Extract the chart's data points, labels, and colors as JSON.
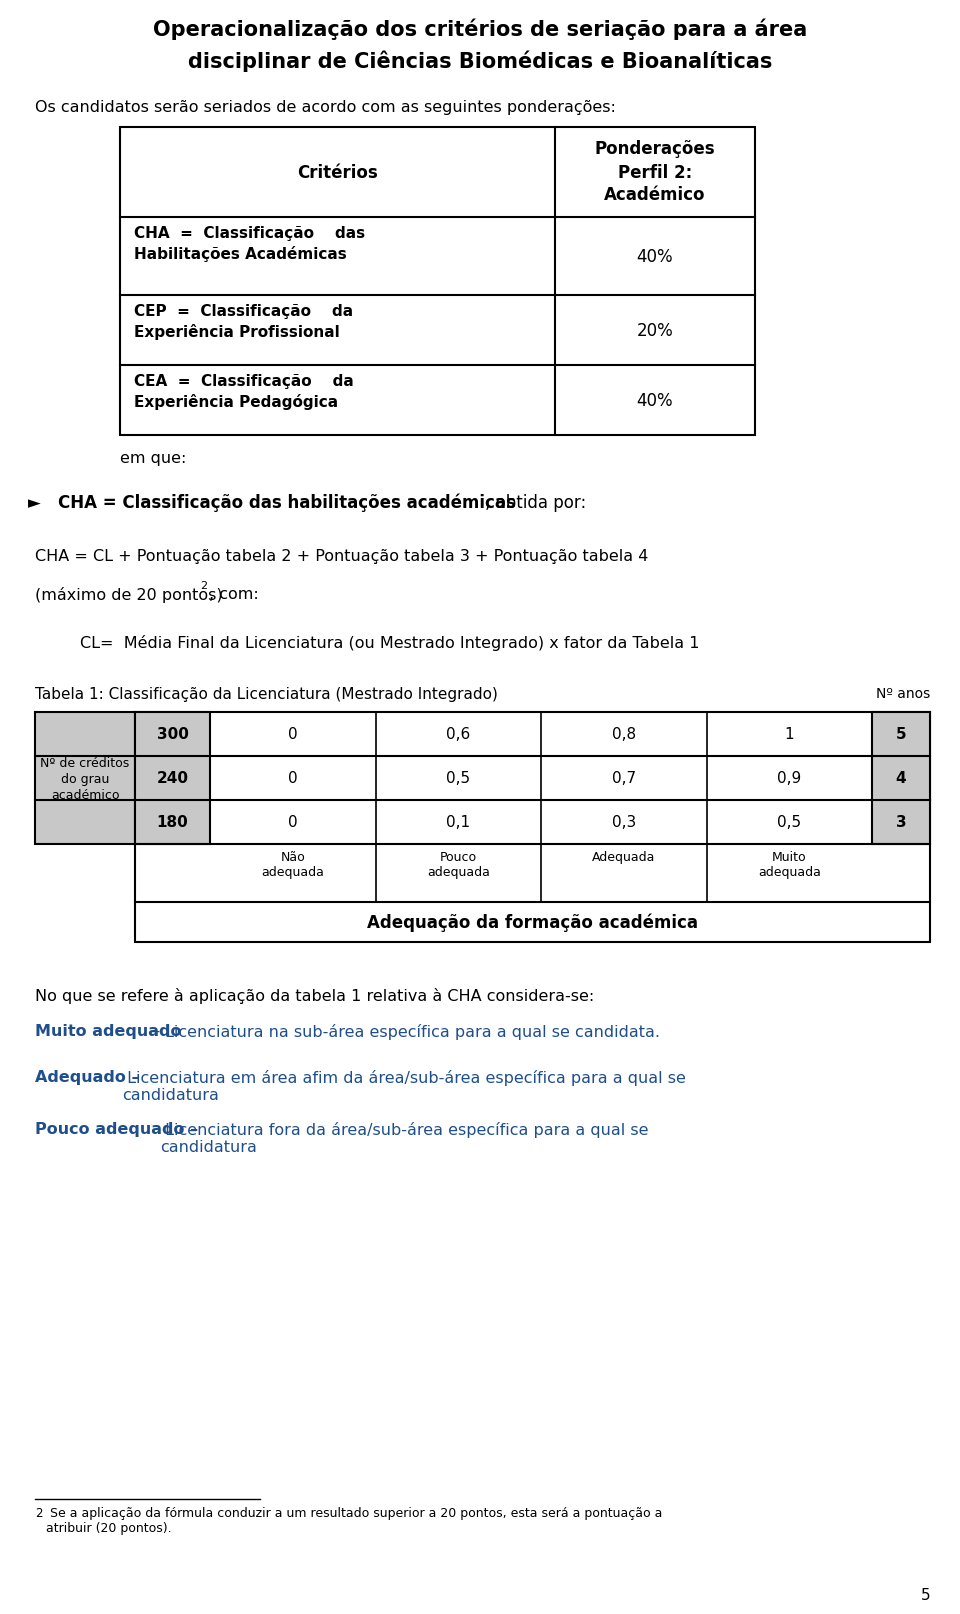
{
  "title_line1": "Operacionalização dos critérios de seriação para a área",
  "title_line2": "disciplinar de Ciências Biomédicas e Bioanalíticas",
  "intro_text": "Os candidatos serão seriados de acordo com as seguintes ponderações:",
  "em_que": "em que:",
  "bullet_bold": "CHA = Classificação das habilitações académicas",
  "bullet_rest": ", obtida por:",
  "formula_line1": "CHA = CL + Pontuação tabela 2 + Pontuação tabela 3 + Pontuação tabela 4",
  "formula_line2": "(máximo de 20 pontos)",
  "formula_superscript": "2",
  "formula_line2_end": ", com:",
  "cl_line": "CL=  Média Final da Licenciatura (ou Mestrado Integrado) x fator da Tabela 1",
  "tabela1_title": "Tabela 1: Classificação da Licenciatura (Mestrado Integrado)",
  "tabela1_right": "Nº anos",
  "tabela1_left_label": [
    "Nº de créditos",
    "do grau",
    "académico"
  ],
  "tabela1_credits": [
    "300",
    "240",
    "180"
  ],
  "tabela1_data": [
    [
      "0",
      "0,6",
      "0,8",
      "1",
      "5"
    ],
    [
      "0",
      "0,5",
      "0,7",
      "0,9",
      "4"
    ],
    [
      "0",
      "0,1",
      "0,3",
      "0,5",
      "3"
    ]
  ],
  "tabela1_adequacao_labels": [
    "Não\nadequada",
    "Pouco\nadequada",
    "Adequada",
    "Muito\nadequada"
  ],
  "tabela1_footer": "Adequação da formação académica",
  "note_line": "No que se refere à aplicação da tabela 1 relativa à CHA considera-se:",
  "muito_bold": "Muito adequado",
  "muito_dash": " – ",
  "muito_rest": "Licenciatura na sub-área específica para a qual se candidata.",
  "adequado_bold": "Adequado –",
  "adequado_rest": " Licenciatura em área afim da área/sub-área específica para a qual se\ncandidatura",
  "pouco_bold": "Pouco adequado –",
  "pouco_rest": " Licenciatura fora da área/sub-área específica para a qual se\ncandidatura",
  "footnote_line1": " Se a aplicação da fórmula conduzir a um resultado superior a 20 pontos, esta será a pontuação a",
  "footnote_line2": "atribuir (20 pontos).",
  "footnote_num": "2",
  "page_num": "5",
  "bg_color": "#ffffff",
  "blue_color": "#1f4e8c",
  "gray_cell_color": "#c8c8c8"
}
